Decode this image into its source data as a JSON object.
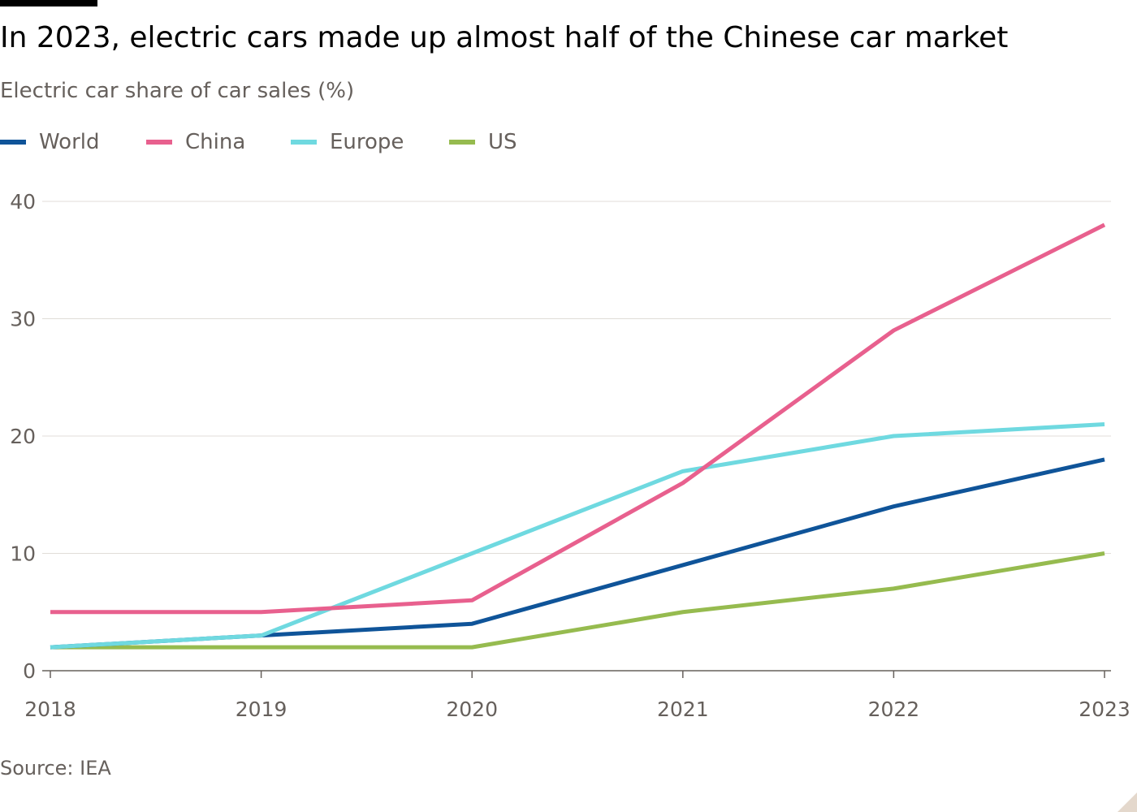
{
  "header": {
    "title": "In 2023, electric cars made up almost half of the Chinese car market",
    "subtitle": "Electric car share of car sales (%)"
  },
  "footer": {
    "source": "Source: IEA"
  },
  "colors": {
    "grid": "#e0ddd8",
    "axis": "#66605c",
    "tick_text": "#66605c"
  },
  "chart_data": {
    "type": "line",
    "x": [
      2018,
      2019,
      2020,
      2021,
      2022,
      2023
    ],
    "x_tick_labels": [
      "2018",
      "2019",
      "2020",
      "2021",
      "2022",
      "2023"
    ],
    "y_tick_labels": [
      "0",
      "10",
      "20",
      "30",
      "40"
    ],
    "y_ticks": [
      0,
      10,
      20,
      30,
      40
    ],
    "ylim": [
      0,
      40
    ],
    "xlim": [
      2018,
      2023
    ],
    "grid": true,
    "legend_position": "top-left",
    "series": [
      {
        "name": "World",
        "color": "#0f5499",
        "values": [
          2,
          3,
          4,
          9,
          14,
          18
        ]
      },
      {
        "name": "China",
        "color": "#e8608e",
        "values": [
          5,
          5,
          6,
          16,
          29,
          38
        ]
      },
      {
        "name": "Europe",
        "color": "#6fd9e0",
        "values": [
          2,
          3,
          10,
          17,
          20,
          21
        ]
      },
      {
        "name": "US",
        "color": "#96bb4f",
        "values": [
          2,
          2,
          2,
          5,
          7,
          10
        ]
      }
    ]
  }
}
